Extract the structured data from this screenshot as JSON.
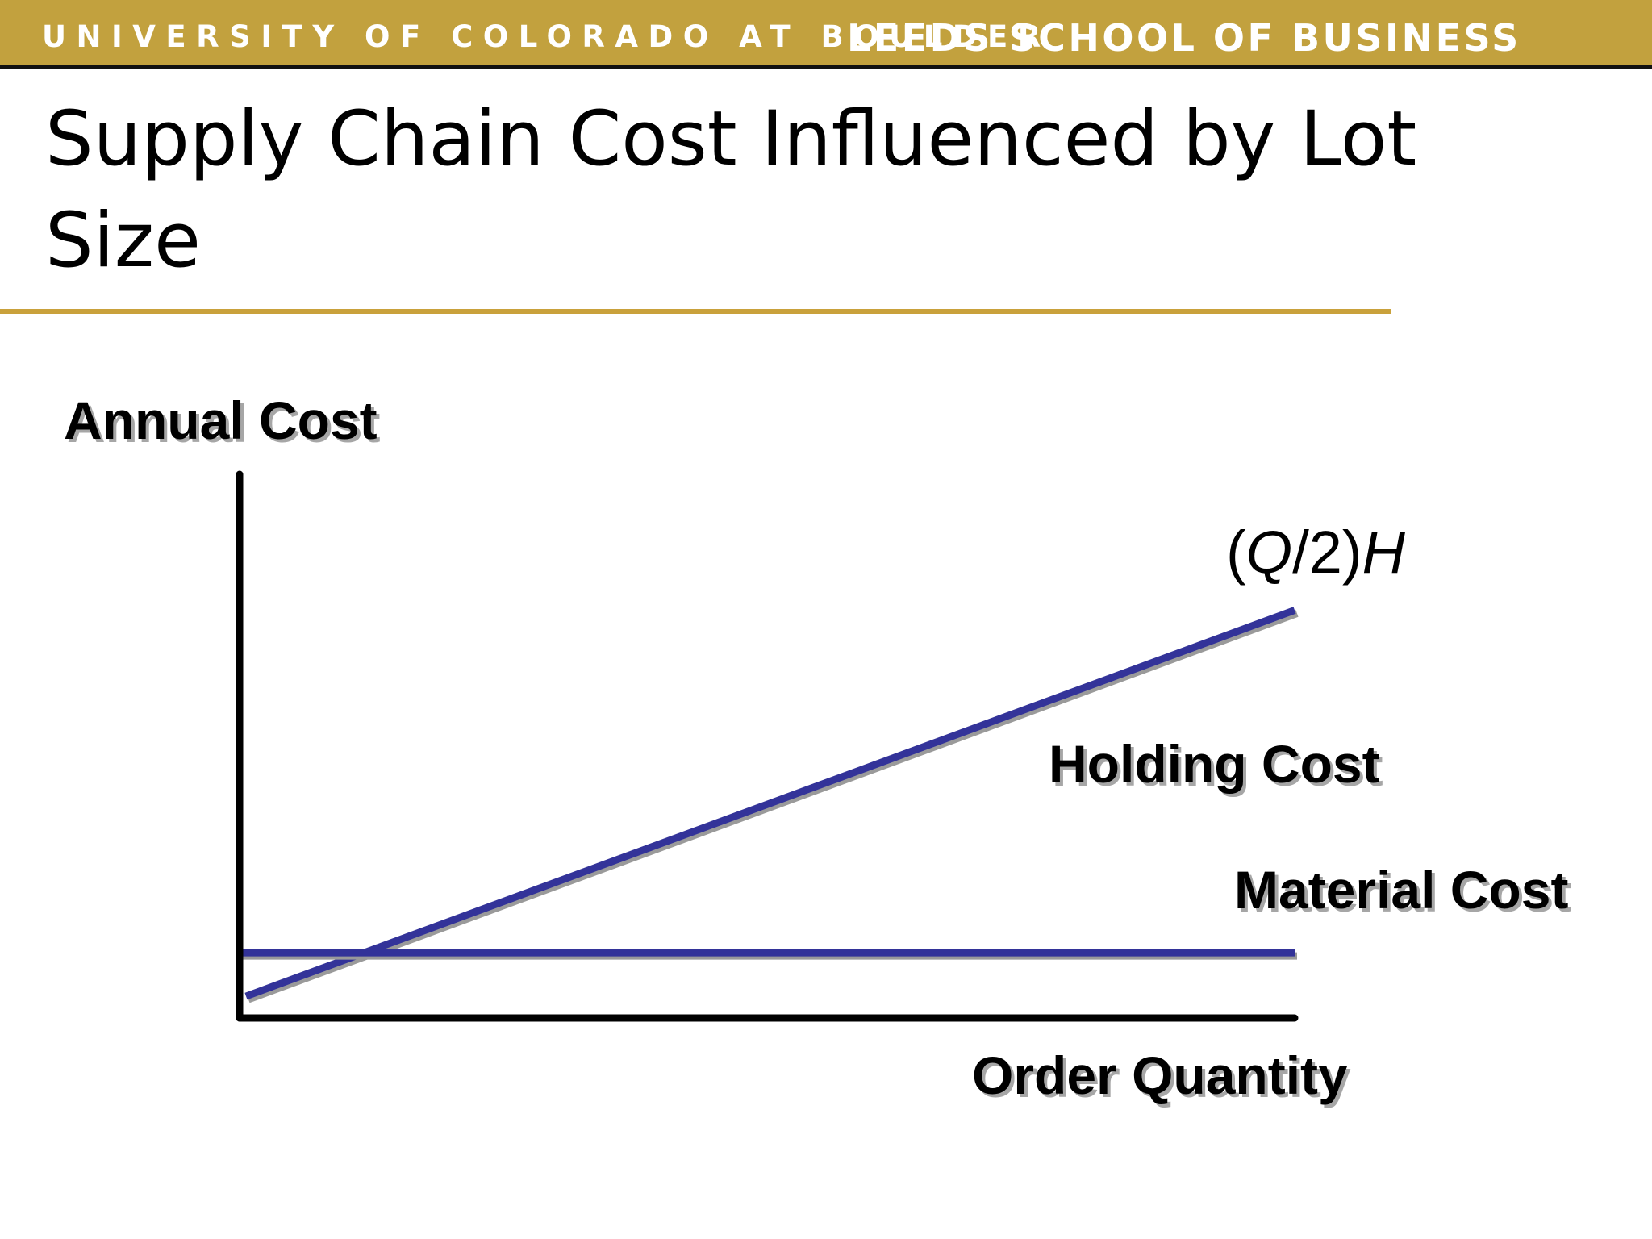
{
  "banner": {
    "university": "UNIVERSITY OF COLORADO AT BOULDER",
    "school": "LEEDS SCHOOL OF BUSINESS",
    "background_color": "#c2a13e",
    "text_color": "#ffffff"
  },
  "slide": {
    "title": "Supply Chain Cost Influenced by Lot Size",
    "rule_color": "#c9a13b"
  },
  "chart_data": {
    "type": "line",
    "title": "",
    "xlabel": "Order Quantity",
    "ylabel": "Annual Cost",
    "grid": false,
    "x_ticks": [],
    "y_ticks": [],
    "xlim": [
      0,
      1
    ],
    "ylim": [
      0,
      1
    ],
    "series": [
      {
        "name": "Holding Cost",
        "formula": "(Q/2)H",
        "color": "#333399",
        "points": [
          [
            0,
            0.04
          ],
          [
            1,
            0.75
          ]
        ]
      },
      {
        "name": "Material Cost",
        "color": "#333399",
        "points": [
          [
            0,
            0.12
          ],
          [
            1,
            0.12
          ]
        ]
      }
    ]
  }
}
